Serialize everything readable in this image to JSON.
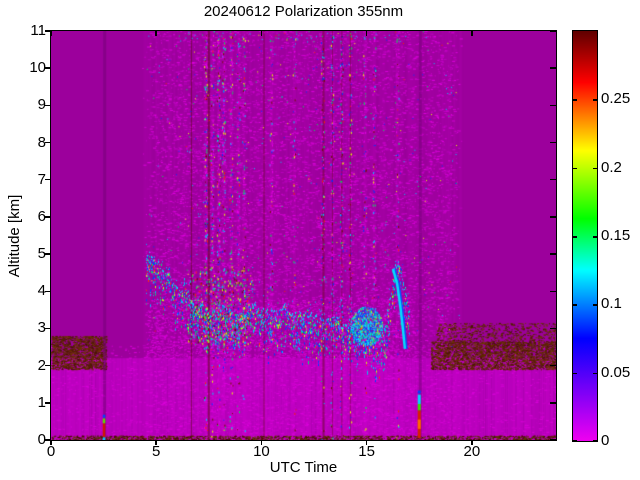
{
  "figure": {
    "background": "#ffffff"
  },
  "chart_data": {
    "type": "heatmap",
    "title": "20240612 Polarization 355nm",
    "xlabel": "UTC Time",
    "ylabel": "Altitude [km]",
    "xlim": [
      0,
      24
    ],
    "ylim": [
      0,
      11
    ],
    "x_ticks": [
      0,
      5,
      10,
      15,
      20
    ],
    "y_ticks": [
      0,
      1,
      2,
      3,
      4,
      5,
      6,
      7,
      8,
      9,
      10,
      11
    ],
    "grid": false,
    "legend": "none",
    "colorbar": {
      "position": "right",
      "range": [
        0,
        0.3
      ],
      "tick_values": [
        0,
        0.05,
        0.1,
        0.15,
        0.2,
        0.25
      ],
      "tick_labels": [
        "0",
        "0.05",
        "0.1",
        "0.15",
        "0.2",
        "0.25"
      ],
      "colormap_stops": [
        [
          0.0,
          "#f000f0"
        ],
        [
          0.25,
          "#0000ff"
        ],
        [
          0.417,
          "#00ffff"
        ],
        [
          0.542,
          "#00ff00"
        ],
        [
          0.708,
          "#ffff00"
        ],
        [
          0.875,
          "#ff0000"
        ],
        [
          1.0,
          "#600000"
        ]
      ]
    },
    "heatmap_features": {
      "base_color": "#9c009c",
      "low_band": {
        "top_km": 2.2,
        "color": "#b400b8",
        "bright_stripe": [
          214,
          0,
          214
        ],
        "dark_stripe": [
          150,
          0,
          154
        ]
      },
      "mid_stripes": {
        "x0": 4.3,
        "x1": 19.6,
        "rgb": [
          206,
          0,
          206
        ],
        "max_alpha": 0.18
      },
      "speckle_region": {
        "x0": 4.3,
        "x1": 19.6,
        "count": 15000,
        "colors": [
          "#c200c6",
          "#ce00ce",
          "#dc00dc",
          "#b800bc"
        ]
      },
      "low_speckles": {
        "count": 2600,
        "y1": 2.55,
        "colors": [
          "#cc00cc",
          "#c400c4",
          "#d800d8"
        ]
      },
      "under_layer_speckles": {
        "x0": 4.5,
        "x1": 17.2,
        "y0": 2.2,
        "y1": 3.8,
        "count": 1800,
        "colors": [
          "#ce00ce",
          "#dc00dc"
        ]
      },
      "maroon_palette": [
        "#5a2600",
        "#6b3a00",
        "#471400",
        "#703200",
        "#551c00"
      ],
      "maroon_bands": [
        {
          "x0": 0.0,
          "x1": 2.6,
          "y0": 1.9,
          "y1": 2.8,
          "count": 1500
        },
        {
          "x0": 18.05,
          "x1": 24.0,
          "y0": 1.9,
          "y1": 2.65,
          "count": 2600
        },
        {
          "x0": 18.3,
          "x1": 24.0,
          "y0": 2.6,
          "y1": 3.15,
          "count": 650
        }
      ],
      "bottom_line": {
        "y1": 0.12,
        "count": 1400,
        "colors": [
          "#500000",
          "#554400",
          "#663300",
          "#401000"
        ]
      },
      "dark_columns": [
        {
          "x": 2.55,
          "w": 3,
          "color": "rgba(118,0,122,0.55)"
        },
        {
          "x": 17.55,
          "w": 3,
          "color": "rgba(118,0,122,0.55)"
        }
      ],
      "dark_vlines": {
        "xs": [
          6.65,
          7.45,
          10.1,
          12.9,
          13.35,
          13.8,
          14.2
        ],
        "color": "rgba(88,10,6,0.5)"
      },
      "noise_columns": {
        "xs": [
          [
            7.35,
            0.9
          ],
          [
            7.65,
            0.7
          ],
          [
            7.95,
            1.0
          ],
          [
            8.2,
            0.85
          ],
          [
            8.55,
            0.6
          ],
          [
            8.9,
            0.5
          ],
          [
            9.15,
            0.4
          ],
          [
            10.45,
            0.35
          ],
          [
            11.55,
            0.3
          ],
          [
            12.9,
            0.5
          ],
          [
            13.35,
            0.6
          ],
          [
            13.8,
            0.7
          ],
          [
            14.2,
            0.55
          ],
          [
            14.9,
            0.4
          ],
          [
            15.35,
            0.5
          ],
          [
            16.45,
            0.3
          ]
        ],
        "palette": [
          [
            "#e600e6",
            0.4
          ],
          [
            "#00ccff",
            0.14
          ],
          [
            "#0033ff",
            0.12
          ],
          [
            "#00e855",
            0.1
          ],
          [
            "#e8ff00",
            0.09
          ],
          [
            "#ff2200",
            0.06
          ],
          [
            "#701000",
            0.09
          ]
        ],
        "base_count": 260
      },
      "scatter_dots": {
        "count": 550,
        "x0": 4.5,
        "x1": 19.4,
        "y0": 2.3,
        "y1": 11,
        "palette": [
          [
            "#00ccff",
            0.25
          ],
          [
            "#0033ff",
            0.2
          ],
          [
            "#00e855",
            0.2
          ],
          [
            "#e8ff00",
            0.15
          ],
          [
            "#ff2200",
            0.08
          ],
          [
            "#e600e6",
            0.12
          ]
        ]
      },
      "layer": {
        "points": [
          [
            4.55,
            5.0
          ],
          [
            4.8,
            4.85
          ],
          [
            5.1,
            4.8
          ],
          [
            5.35,
            4.55
          ],
          [
            5.6,
            4.55
          ],
          [
            5.85,
            4.05
          ],
          [
            6.1,
            3.95
          ],
          [
            6.35,
            4.25
          ],
          [
            6.6,
            3.75
          ],
          [
            6.9,
            3.5
          ],
          [
            7.2,
            3.55
          ],
          [
            7.5,
            3.45
          ],
          [
            7.8,
            3.35
          ],
          [
            8.1,
            3.6
          ],
          [
            8.4,
            3.45
          ],
          [
            8.7,
            3.25
          ],
          [
            9.0,
            3.4
          ],
          [
            9.3,
            3.55
          ],
          [
            9.6,
            3.6
          ],
          [
            9.9,
            3.5
          ],
          [
            10.2,
            3.45
          ],
          [
            10.5,
            3.4
          ],
          [
            10.8,
            3.5
          ],
          [
            11.1,
            3.55
          ],
          [
            11.4,
            3.35
          ],
          [
            11.7,
            3.3
          ],
          [
            12.0,
            3.4
          ],
          [
            12.3,
            3.35
          ],
          [
            12.6,
            3.25
          ],
          [
            12.9,
            3.3
          ],
          [
            13.2,
            3.2
          ],
          [
            13.5,
            3.35
          ],
          [
            13.8,
            3.1
          ],
          [
            14.1,
            2.95
          ],
          [
            14.4,
            2.9
          ],
          [
            14.7,
            3.1
          ],
          [
            15.0,
            3.05
          ],
          [
            15.3,
            2.85
          ],
          [
            15.6,
            2.7
          ],
          [
            15.9,
            3.1
          ],
          [
            16.1,
            3.9
          ],
          [
            16.3,
            4.55
          ],
          [
            16.5,
            4.85
          ],
          [
            16.7,
            4.3
          ],
          [
            16.9,
            3.8
          ],
          [
            17.05,
            3.3
          ]
        ],
        "cap_color": "#00e0ff",
        "body_palette": [
          [
            "#00b8ff",
            0.3
          ],
          [
            "#0040ff",
            0.25
          ],
          [
            "#00e070",
            0.2
          ],
          [
            "#c8ff00",
            0.1
          ],
          [
            "#ff3000",
            0.07
          ],
          [
            "#e000e0",
            0.08
          ]
        ],
        "thickness": 0.55
      },
      "messy_zone": {
        "x0": 6.5,
        "x1": 9.6,
        "y0": 2.6,
        "y1": 4.6,
        "count": 450,
        "palette": [
          [
            "#e8ff00",
            0.25
          ],
          [
            "#ff2200",
            0.15
          ],
          [
            "#00e855",
            0.25
          ],
          [
            "#00ccff",
            0.2
          ],
          [
            "#5a1000",
            0.15
          ]
        ]
      },
      "layer_blob": {
        "x0": 14.2,
        "x1": 15.75,
        "y0": 2.55,
        "y1": 3.6,
        "count": 900,
        "palette": [
          [
            "#00e0ff",
            0.45
          ],
          [
            "#0040ff",
            0.3
          ],
          [
            "#00e070",
            0.15
          ],
          [
            "#c8ff00",
            0.1
          ]
        ]
      },
      "arc": {
        "points": [
          [
            16.25,
            4.6
          ],
          [
            16.45,
            4.2
          ],
          [
            16.6,
            3.6
          ],
          [
            16.72,
            3.0
          ],
          [
            16.82,
            2.45
          ]
        ],
        "color": "#00e0ff",
        "shadow": "#0050ff"
      },
      "streaks": [
        {
          "x": 2.52,
          "w": 2.5,
          "segs": [
            [
              0.08,
              0.45,
              "#cc1800"
            ],
            [
              0.45,
              0.58,
              "#58dc00"
            ],
            [
              0.0,
              0.07,
              "#00ccff"
            ],
            [
              0.6,
              0.68,
              "#0044ff"
            ]
          ]
        },
        {
          "x": 17.5,
          "w": 3,
          "segs": [
            [
              0.05,
              0.8,
              "#d82000"
            ],
            [
              0.3,
              0.55,
              "#ff6a00"
            ],
            [
              0.8,
              0.97,
              "#38e000"
            ],
            [
              0.97,
              1.22,
              "#00d5ff"
            ],
            [
              1.25,
              1.33,
              "#0040ff"
            ]
          ]
        }
      ],
      "top_edge_dots": {
        "x0": 6.0,
        "x1": 17.0,
        "y0": 10.7,
        "y1": 11,
        "count": 70,
        "palette": [
          [
            "#00ccff",
            0.4
          ],
          [
            "#00e855",
            0.3
          ],
          [
            "#e600e6",
            0.3
          ]
        ]
      }
    }
  }
}
